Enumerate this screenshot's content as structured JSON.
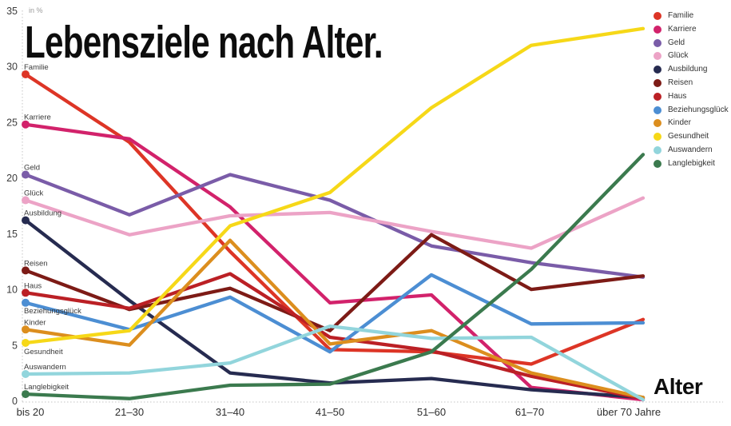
{
  "title": "Lebensziele nach Alter.",
  "chart_data": {
    "type": "line",
    "title": "Lebensziele nach Alter.",
    "xlabel": "Alter",
    "ylabel": "in %",
    "ylim": [
      0,
      35
    ],
    "y_ticks": [
      0,
      5,
      10,
      15,
      20,
      25,
      30,
      35
    ],
    "grid": false,
    "legend_position": "top-right",
    "line_labels_at_start": true,
    "categories": [
      "bis 20",
      "21–30",
      "31–40",
      "41–50",
      "51–60",
      "61–70",
      "über 70 Jahre"
    ],
    "series": [
      {
        "name": "Familie",
        "color": "#dd3526",
        "values": [
          29.3,
          23.2,
          13.4,
          4.6,
          4.4,
          3.3,
          7.3
        ]
      },
      {
        "name": "Karriere",
        "color": "#d2226b",
        "values": [
          24.8,
          23.5,
          17.4,
          8.8,
          9.5,
          1.2,
          0.1
        ]
      },
      {
        "name": "Geld",
        "color": "#7a5ca8",
        "values": [
          20.3,
          16.7,
          20.3,
          18.0,
          13.9,
          12.4,
          11.1
        ]
      },
      {
        "name": "Glück",
        "color": "#eca3c6",
        "values": [
          18.0,
          14.9,
          16.6,
          16.9,
          15.2,
          13.7,
          18.2
        ]
      },
      {
        "name": "Ausbildung",
        "color": "#262b50",
        "values": [
          16.2,
          9.0,
          2.5,
          1.6,
          2.0,
          1.0,
          0.3
        ]
      },
      {
        "name": "Reisen",
        "color": "#7d1b16",
        "values": [
          11.7,
          8.2,
          10.1,
          6.3,
          14.9,
          10.0,
          11.2
        ]
      },
      {
        "name": "Haus",
        "color": "#bb2025",
        "values": [
          9.7,
          8.3,
          11.4,
          5.7,
          4.5,
          2.2,
          0.2
        ]
      },
      {
        "name": "Beziehungsglück",
        "color": "#4c8ed3",
        "values": [
          8.8,
          6.4,
          9.3,
          4.4,
          11.3,
          6.9,
          7.0
        ]
      },
      {
        "name": "Kinder",
        "color": "#dc8e1e",
        "values": [
          6.4,
          5.0,
          14.4,
          5.1,
          6.3,
          2.5,
          0.3
        ]
      },
      {
        "name": "Gesundheit",
        "color": "#f6d818",
        "values": [
          5.2,
          6.3,
          15.7,
          18.7,
          26.3,
          31.9,
          33.4
        ]
      },
      {
        "name": "Auswandern",
        "color": "#92d5dc",
        "values": [
          2.4,
          2.5,
          3.4,
          6.7,
          5.6,
          5.7,
          0.1
        ]
      },
      {
        "name": "Langlebigkeit",
        "color": "#3b7a4e",
        "values": [
          0.6,
          0.2,
          1.4,
          1.5,
          4.4,
          11.8,
          22.1
        ]
      }
    ]
  }
}
